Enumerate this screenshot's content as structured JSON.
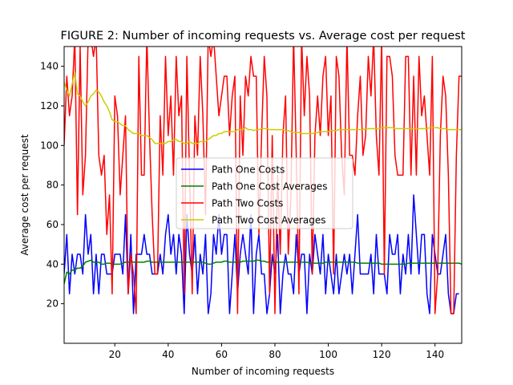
{
  "chart_data": {
    "type": "line",
    "title": "FIGURE 2: Number of incoming requests vs. Average cost per request",
    "xlabel": "Number of incoming requests",
    "ylabel": "Average cost per request",
    "xlim": [
      1,
      150
    ],
    "ylim": [
      0,
      150
    ],
    "xticks": [
      20,
      40,
      60,
      80,
      100,
      120,
      140
    ],
    "yticks": [
      20,
      40,
      60,
      80,
      100,
      120,
      140
    ],
    "grid": false,
    "legend_position": "center",
    "series": [
      {
        "name": "Path One Costs",
        "color": "#0000ff",
        "x_start": 1,
        "values": [
          35,
          55,
          25,
          45,
          35,
          45,
          45,
          35,
          65,
          45,
          55,
          25,
          45,
          25,
          45,
          45,
          35,
          35,
          35,
          45,
          45,
          45,
          35,
          65,
          25,
          55,
          15,
          45,
          45,
          45,
          55,
          45,
          45,
          35,
          35,
          35,
          45,
          35,
          55,
          65,
          45,
          55,
          35,
          55,
          45,
          15,
          65,
          45,
          35,
          55,
          25,
          45,
          35,
          55,
          15,
          25,
          55,
          45,
          65,
          45,
          55,
          55,
          15,
          35,
          55,
          25,
          45,
          55,
          45,
          35,
          65,
          15,
          45,
          55,
          35,
          35,
          15,
          25,
          45,
          35,
          55,
          15,
          35,
          45,
          35,
          35,
          25,
          55,
          35,
          45,
          45,
          15,
          45,
          35,
          55,
          45,
          35,
          55,
          25,
          45,
          35,
          25,
          45,
          25,
          35,
          45,
          35,
          45,
          25,
          45,
          65,
          35,
          35,
          35,
          35,
          45,
          25,
          55,
          35,
          35,
          35,
          25,
          55,
          45,
          45,
          55,
          25,
          45,
          35,
          55,
          35,
          75,
          55,
          35,
          55,
          55,
          25,
          15,
          55,
          45,
          35,
          35,
          45,
          55,
          25,
          15,
          15,
          25,
          25
        ]
      },
      {
        "name": "Path One Cost Averages",
        "color": "#008000",
        "x_start": 1,
        "values": [
          30,
          36,
          35,
          37,
          37,
          38,
          38,
          39,
          41,
          41.5,
          42,
          41,
          41,
          41,
          40,
          40,
          40.5,
          40.5,
          40,
          40,
          40,
          40,
          40.5,
          41,
          41,
          41.5,
          41,
          41,
          41,
          41,
          41,
          41.5,
          41.5,
          41,
          41,
          41,
          41,
          41,
          41,
          41,
          41,
          41,
          41,
          41,
          41,
          41,
          41,
          41,
          41,
          41,
          41,
          41,
          41,
          40.5,
          40,
          40,
          40.5,
          41,
          41,
          41,
          41.5,
          41.5,
          41,
          41,
          41,
          41,
          41,
          41.5,
          41.5,
          41.5,
          41.5,
          41.5,
          42,
          42,
          41.5,
          41.5,
          41,
          41,
          41,
          41,
          41,
          41,
          41,
          41,
          41,
          41,
          41,
          41,
          41,
          41,
          41,
          41,
          40.5,
          40.5,
          40.5,
          40.5,
          40.5,
          40.5,
          41,
          41,
          41,
          41,
          41,
          41,
          41,
          41,
          41,
          41,
          41,
          41,
          40.5,
          40.5,
          40.5,
          40.5,
          40.5,
          40.5,
          40.5,
          40.5,
          40.5,
          40,
          40,
          40,
          40,
          40,
          40,
          40,
          40,
          40,
          40,
          40.5,
          40.5,
          40.5,
          40.5,
          40.5,
          40.5,
          40.5,
          40.5,
          40.5,
          40.5,
          40.5,
          40.5,
          40.5,
          40.5,
          40.5,
          40.5,
          40.5,
          40.5,
          40.5,
          40.5,
          40,
          40,
          40,
          40,
          40
        ]
      },
      {
        "name": "Path Two Costs",
        "color": "#ff0000",
        "x_start": 1,
        "values": [
          100,
          135,
          115,
          125,
          155,
          65,
          150,
          75,
          95,
          155,
          155,
          145,
          155,
          95,
          85,
          95,
          55,
          75,
          25,
          125,
          115,
          75,
          95,
          115,
          25,
          45,
          35,
          15,
          145,
          85,
          85,
          155,
          105,
          65,
          35,
          35,
          115,
          85,
          145,
          105,
          125,
          85,
          145,
          115,
          125,
          25,
          145,
          85,
          25,
          115,
          95,
          145,
          115,
          65,
          155,
          145,
          155,
          135,
          115,
          125,
          135,
          135,
          105,
          125,
          135,
          15,
          125,
          95,
          135,
          125,
          145,
          135,
          135,
          55,
          105,
          145,
          125,
          25,
          105,
          15,
          85,
          45,
          105,
          125,
          45,
          75,
          155,
          95,
          25,
          155,
          115,
          145,
          125,
          35,
          105,
          125,
          105,
          135,
          145,
          105,
          125,
          35,
          145,
          135,
          95,
          75,
          155,
          95,
          95,
          85,
          115,
          135,
          95,
          105,
          145,
          125,
          155,
          105,
          85,
          155,
          35,
          145,
          145,
          135,
          95,
          85,
          85,
          85,
          145,
          145,
          85,
          135,
          85,
          145,
          115,
          125,
          105,
          85,
          145,
          15,
          35,
          105,
          135,
          125,
          85,
          15,
          15,
          95,
          135,
          135
        ]
      },
      {
        "name": "Path Two Cost Averages",
        "color": "#cccc00",
        "x_start": 1,
        "values": [
          132,
          128,
          125,
          131,
          137,
          126,
          125,
          122,
          120,
          122,
          125,
          126,
          128,
          127,
          125,
          122,
          120,
          117,
          113,
          112,
          112,
          111,
          110,
          110,
          108,
          107,
          106,
          106,
          106,
          105,
          105,
          105,
          104,
          103,
          101,
          101,
          101,
          101,
          101,
          102,
          102,
          103,
          103,
          102,
          102,
          101,
          101,
          102,
          101,
          101,
          101,
          102,
          102,
          102,
          103,
          104,
          105,
          105,
          106,
          106,
          107,
          107,
          107,
          107,
          107,
          108,
          108,
          108,
          109,
          108,
          108,
          107.5,
          108,
          108,
          108.5,
          108.5,
          108.5,
          108,
          108,
          108,
          108,
          108,
          108,
          107.5,
          107.5,
          107,
          106.5,
          106.5,
          106.5,
          106,
          106,
          106,
          106,
          106,
          106.5,
          106.5,
          107,
          107,
          107,
          107,
          107.5,
          107.5,
          107.5,
          108,
          108,
          108,
          108,
          108,
          108,
          108,
          108,
          108,
          108,
          108.5,
          108.5,
          108.5,
          108.5,
          108.5,
          108.5,
          109,
          109,
          109,
          109,
          109,
          108.5,
          108.5,
          108.5,
          108.5,
          108.5,
          108.5,
          108.5,
          108.5,
          108.5,
          108.5,
          108.5,
          108.5,
          108.5,
          109,
          109,
          109,
          109,
          108.5,
          108.5,
          108.5,
          108,
          108,
          108,
          108,
          108,
          108,
          108
        ]
      }
    ]
  }
}
